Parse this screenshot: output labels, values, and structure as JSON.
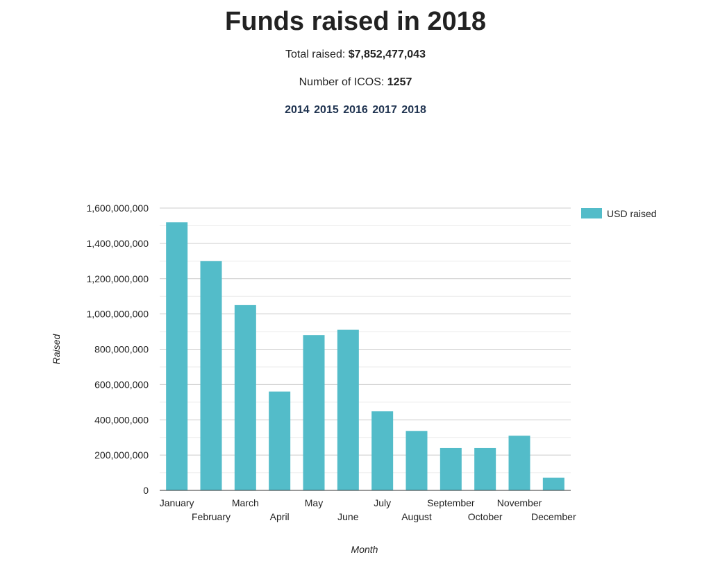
{
  "header": {
    "title": "Funds raised in 2018",
    "total_label": "Total raised: ",
    "total_value": "$7,852,477,043",
    "count_label": "Number of ICOS: ",
    "count_value": "1257",
    "years": [
      "2014",
      "2015",
      "2016",
      "2017",
      "2018"
    ]
  },
  "colors": {
    "bar": "#53bcc9",
    "grid": "#cccccc",
    "minor_grid": "#ebebeb",
    "axis": "#333333",
    "year_link": "#1f3350"
  },
  "chart_data": {
    "type": "bar",
    "title": "Funds raised in 2018",
    "xlabel": "Month",
    "ylabel": "Raised",
    "categories": [
      "January",
      "February",
      "March",
      "April",
      "May",
      "June",
      "July",
      "August",
      "September",
      "October",
      "November",
      "December"
    ],
    "series": [
      {
        "name": "USD raised",
        "values": [
          1520000000,
          1300000000,
          1050000000,
          560000000,
          880000000,
          910000000,
          448000000,
          337000000,
          240000000,
          240000000,
          310000000,
          72000000
        ]
      }
    ],
    "ylim": [
      0,
      1600000000
    ],
    "yticks": [
      0,
      200000000,
      400000000,
      600000000,
      800000000,
      1000000000,
      1200000000,
      1400000000,
      1600000000
    ],
    "ytick_labels": [
      "0",
      "200,000,000",
      "400,000,000",
      "600,000,000",
      "800,000,000",
      "1,000,000,000",
      "1,200,000,000",
      "1,400,000,000",
      "1,600,000,000"
    ],
    "grid": true,
    "legend_position": "right"
  }
}
